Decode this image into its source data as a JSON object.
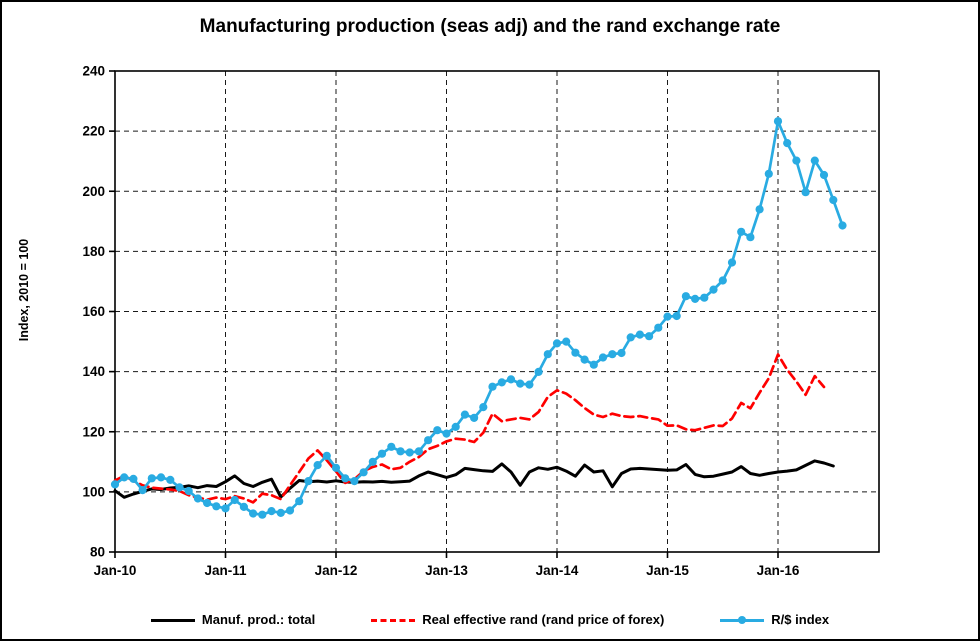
{
  "title": "Manufacturing production (seas adj) and the rand exchange rate",
  "legend": {
    "items": [
      {
        "label": "Manuf. prod.: total",
        "color": "#000000",
        "style": "solid"
      },
      {
        "label": "Real effective rand (rand price of forex)",
        "color": "#ff0000",
        "style": "dashed"
      },
      {
        "label": "R/$ index",
        "color": "#29abe2",
        "style": "solid-marker"
      }
    ]
  },
  "chart_data": {
    "type": "line",
    "title": "Manufacturing production (seas adj) and the rand exchange rate",
    "xlabel": "",
    "ylabel": "Index, 2010 = 100",
    "ylim": [
      80,
      240
    ],
    "ytick_step": 20,
    "grid": "dashed",
    "legend_position": "bottom",
    "x_unit": "month",
    "x_start_label": "Jan-10",
    "x_tick_labels": [
      "Jan-10",
      "Jan-11",
      "Jan-12",
      "Jan-13",
      "Jan-14",
      "Jan-15",
      "Jan-16"
    ],
    "x_tick_month_indices": [
      0,
      12,
      24,
      36,
      48,
      60,
      72
    ],
    "series": [
      {
        "name": "Manuf. prod.: total",
        "color": "#000000",
        "style": "solid",
        "marker": "none",
        "start_month": "Jan-10",
        "end_month": "Jul-16",
        "values": [
          100.4,
          98.2,
          99.3,
          100.2,
          101.0,
          100.8,
          101.3,
          101.5,
          102.0,
          101.4,
          102.1,
          101.8,
          103.4,
          105.3,
          102.8,
          101.8,
          103.2,
          104.2,
          98.3,
          101.2,
          103.8,
          103.4,
          103.6,
          103.3,
          103.7,
          103.3,
          103.2,
          103.4,
          103.3,
          103.5,
          103.2,
          103.4,
          103.6,
          105.3,
          106.6,
          105.7,
          104.8,
          105.7,
          107.8,
          107.4,
          107.0,
          106.8,
          109.3,
          106.6,
          102.2,
          106.6,
          108.0,
          107.5,
          108.2,
          106.9,
          105.2,
          108.9,
          106.6,
          107.0,
          101.7,
          106.1,
          107.6,
          107.8,
          107.6,
          107.4,
          107.2,
          107.3,
          109.1,
          105.8,
          105.0,
          105.2,
          105.9,
          106.6,
          108.4,
          106.1,
          105.5,
          106.1,
          106.6,
          106.9,
          107.3,
          108.8,
          110.3,
          109.6,
          108.6
        ]
      },
      {
        "name": "Real effective rand (rand price of forex)",
        "color": "#ff0000",
        "style": "dashed",
        "marker": "none",
        "start_month": "Jan-10",
        "end_month": "Jun-16",
        "values": [
          103.8,
          105.3,
          103.7,
          102.2,
          101.4,
          101.1,
          100.8,
          100.3,
          98.9,
          98.1,
          97.4,
          98.1,
          97.6,
          98.6,
          97.8,
          96.5,
          99.4,
          98.9,
          97.6,
          102.2,
          106.6,
          111.1,
          113.8,
          110.5,
          106.8,
          103.0,
          104.2,
          106.9,
          108.3,
          109.1,
          107.5,
          108.0,
          110.0,
          111.6,
          114.2,
          115.3,
          116.8,
          117.7,
          117.4,
          116.6,
          119.7,
          126.0,
          123.5,
          124.1,
          124.6,
          124.1,
          126.6,
          131.6,
          133.8,
          132.7,
          130.5,
          127.9,
          125.7,
          124.9,
          126.0,
          125.2,
          124.9,
          125.2,
          124.6,
          124.1,
          122.0,
          122.1,
          120.8,
          120.5,
          121.3,
          122.1,
          121.9,
          124.4,
          129.6,
          127.8,
          133.0,
          137.8,
          145.7,
          140.6,
          136.7,
          132.3,
          138.5,
          134.9
        ]
      },
      {
        "name": "R/$ index",
        "color": "#29abe2",
        "style": "solid",
        "marker": "circle",
        "start_month": "Jan-10",
        "end_month": "Aug-16",
        "values": [
          102.5,
          104.8,
          104.3,
          100.6,
          104.5,
          104.8,
          104.0,
          101.5,
          100.3,
          97.8,
          96.3,
          95.2,
          94.5,
          97.3,
          95.0,
          92.8,
          92.4,
          93.6,
          93.0,
          93.8,
          96.9,
          103.6,
          108.9,
          112.0,
          108.0,
          104.5,
          103.6,
          106.5,
          110.0,
          112.7,
          115.0,
          113.5,
          113.1,
          113.5,
          117.2,
          120.5,
          119.4,
          121.6,
          125.7,
          124.6,
          128.2,
          135.0,
          136.4,
          137.4,
          136.0,
          135.7,
          139.9,
          145.8,
          149.4,
          150.0,
          146.3,
          144.0,
          142.3,
          144.7,
          145.8,
          146.2,
          151.4,
          152.3,
          151.8,
          154.6,
          158.3,
          158.5,
          165.1,
          164.2,
          164.6,
          167.3,
          170.3,
          176.3,
          186.5,
          184.7,
          194.0,
          205.8,
          223.3,
          216.0,
          210.2,
          199.7,
          210.2,
          205.4,
          197.1,
          188.6
        ]
      }
    ]
  }
}
